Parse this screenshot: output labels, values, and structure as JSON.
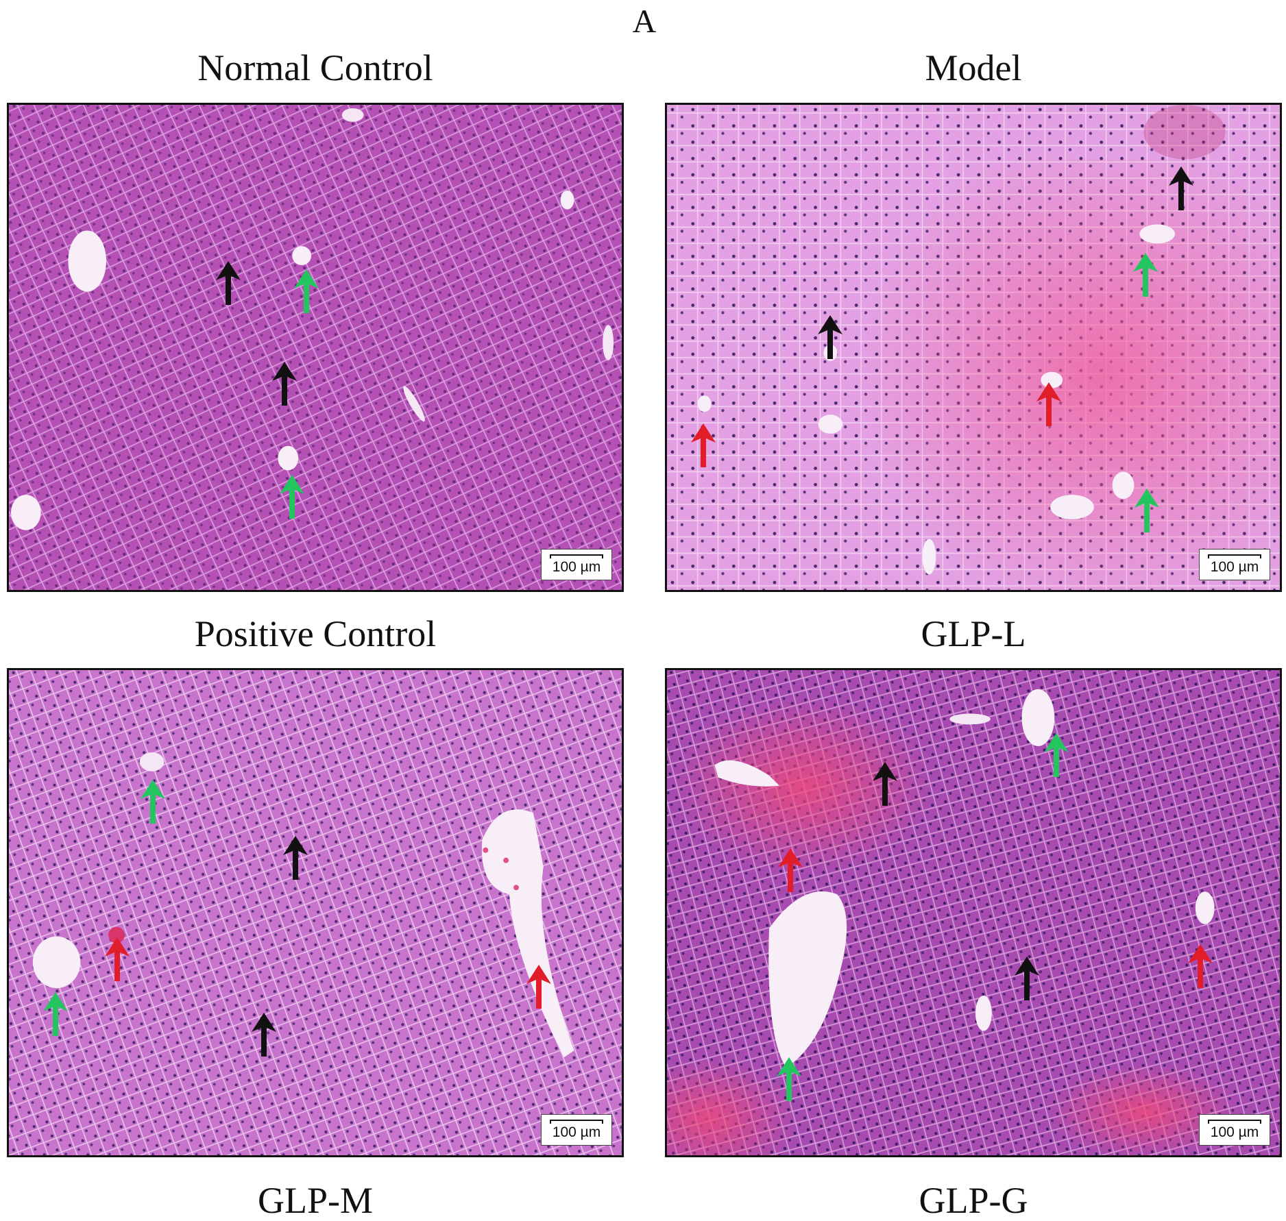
{
  "figure": {
    "panel_letter": "A",
    "scale_label": "100 µm",
    "arrow_colors": {
      "black": "#111111",
      "green": "#22c55e",
      "red": "#e11d2a"
    },
    "panels": [
      {
        "id": "p1",
        "tone": "#b24fb3",
        "tone_light": "#d68fd6",
        "nuclei": "#5a1f6e"
      },
      {
        "id": "p2",
        "tone": "#e079c8",
        "tone_light": "#f0a8dc",
        "nuclei": "#4a2a6a"
      },
      {
        "id": "p3",
        "tone": "#c66bcc",
        "tone_light": "#e2a4e2",
        "nuclei": "#4d2a72"
      },
      {
        "id": "p4",
        "tone": "#a84bb0",
        "tone_light": "#d98ad8",
        "nuclei": "#3f1d63"
      }
    ],
    "labels": [
      "Normal Control",
      "Model",
      "Positive Control",
      "GLP-L",
      "GLP-M",
      "GLP-G"
    ]
  }
}
